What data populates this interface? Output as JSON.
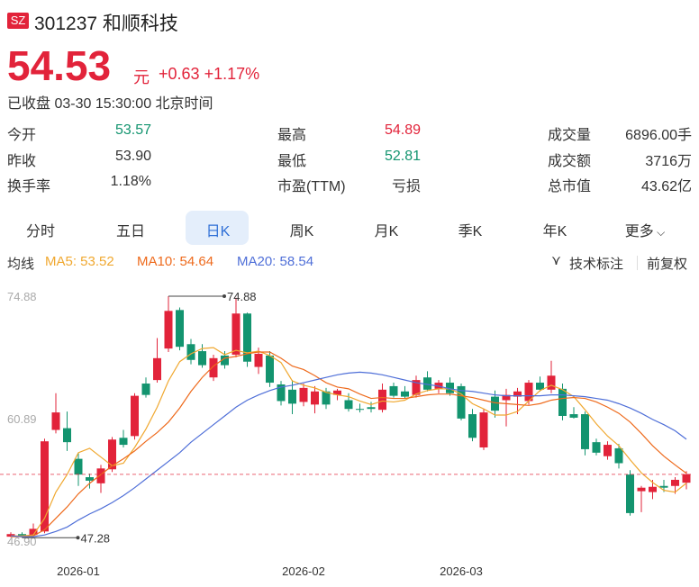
{
  "theme": {
    "up": "#e2233a",
    "down": "#13946f",
    "text": "#222222",
    "muted": "#999999"
  },
  "header": {
    "market": "SZ",
    "code": "301237",
    "name": "和顺科技",
    "price": "54.53",
    "unit": "元",
    "change": "+0.63",
    "change_pct": "+1.17%",
    "status": "已收盘 03-30 15:30:00 北京时间"
  },
  "stats": [
    [
      {
        "label": "今开",
        "value": "53.57",
        "tone": "down"
      },
      {
        "label": "最高",
        "value": "54.89",
        "tone": "up"
      },
      {
        "label": "成交量",
        "value": "6896.00手"
      }
    ],
    [
      {
        "label": "昨收",
        "value": "53.90"
      },
      {
        "label": "最低",
        "value": "52.81",
        "tone": "down"
      },
      {
        "label": "成交额",
        "value": "3716万"
      }
    ],
    [
      {
        "label": "换手率",
        "value": "1.18%"
      },
      {
        "label": "市盈(TTM)",
        "value": "亏损"
      },
      {
        "label": "总市值",
        "value": "43.62亿"
      }
    ]
  ],
  "tabs": {
    "items": [
      "分时",
      "五日",
      "日K",
      "周K",
      "月K",
      "季K",
      "年K",
      "更多"
    ],
    "selected": 2
  },
  "indicator_bar": {
    "label": "均线",
    "tools": [
      "技术标注",
      "前复权"
    ]
  },
  "chart_data": {
    "type": "candlestick",
    "categories": [
      null,
      null,
      null,
      null,
      null,
      null,
      "2026-01",
      null,
      null,
      null,
      null,
      null,
      null,
      null,
      null,
      null,
      null,
      null,
      null,
      null,
      null,
      null,
      null,
      null,
      null,
      null,
      "2026-02",
      null,
      null,
      null,
      null,
      null,
      null,
      null,
      null,
      null,
      null,
      null,
      null,
      null,
      "2026-03",
      null,
      null,
      null,
      null,
      null,
      null,
      null,
      null,
      null,
      null,
      null,
      null,
      null,
      null,
      null,
      null,
      null,
      null,
      null,
      null
    ],
    "open": [
      47.4,
      47.7,
      47.6,
      48.0,
      59.6,
      59.8,
      56.3,
      54.2,
      53.5,
      55.1,
      58.7,
      58.9,
      64.9,
      65.3,
      68.9,
      73.3,
      69.4,
      68.6,
      65.6,
      68.1,
      68.2,
      72.9,
      66.8,
      68.1,
      64.8,
      64.2,
      62.8,
      62.5,
      64.0,
      63.6,
      63.0,
      62.0,
      62.2,
      61.9,
      64.6,
      64.0,
      63.6,
      65.6,
      64.3,
      65.0,
      64.6,
      61.4,
      57.6,
      63.4,
      63.0,
      63.4,
      62.9,
      65.0,
      64.2,
      64.3,
      61.4,
      61.4,
      58.2,
      56.6,
      57.5,
      54.5,
      52.6,
      52.5,
      53.2,
      53.2,
      53.57
    ],
    "high": [
      47.9,
      47.9,
      48.9,
      58.6,
      63.8,
      61.7,
      57.0,
      54.6,
      55.6,
      58.8,
      59.6,
      63.8,
      65.6,
      70.1,
      74.88,
      73.6,
      70.0,
      69.4,
      68.2,
      68.6,
      74.7,
      73.0,
      69.0,
      68.6,
      65.2,
      65.3,
      64.9,
      64.6,
      64.4,
      64.3,
      63.8,
      62.6,
      62.8,
      64.9,
      65.0,
      64.6,
      65.8,
      66.3,
      65.3,
      65.6,
      64.9,
      62.0,
      62.0,
      64.1,
      64.3,
      64.4,
      65.3,
      65.7,
      67.5,
      64.9,
      62.2,
      61.7,
      58.6,
      58.3,
      58.0,
      55.0,
      53.2,
      53.9,
      53.9,
      54.2,
      54.89
    ],
    "low": [
      47.35,
      47.28,
      47.4,
      47.8,
      59.2,
      57.2,
      53.2,
      52.9,
      52.4,
      54.8,
      57.6,
      58.5,
      63.3,
      65.0,
      68.5,
      68.7,
      67.1,
      66.7,
      65.2,
      66.6,
      67.9,
      66.8,
      66.0,
      64.5,
      62.4,
      61.4,
      62.3,
      61.5,
      62.0,
      63.0,
      61.7,
      61.6,
      61.6,
      61.6,
      63.3,
      63.2,
      63.3,
      64.0,
      63.8,
      63.5,
      60.7,
      58.3,
      57.3,
      61.0,
      60.0,
      61.4,
      62.5,
      64.0,
      63.8,
      60.7,
      60.9,
      56.7,
      56.7,
      56.2,
      55.2,
      49.8,
      50.2,
      51.7,
      52.5,
      52.3,
      52.81
    ],
    "close": [
      47.7,
      47.4,
      48.3,
      58.3,
      61.6,
      58.2,
      54.5,
      53.8,
      55.2,
      58.5,
      57.9,
      63.5,
      63.6,
      67.8,
      73.2,
      69.1,
      67.6,
      67.0,
      67.8,
      67.0,
      72.9,
      67.4,
      68.3,
      65.0,
      62.9,
      62.6,
      64.4,
      64.0,
      62.5,
      64.1,
      62.0,
      61.9,
      62.0,
      64.2,
      63.5,
      63.4,
      65.3,
      64.2,
      65.0,
      63.8,
      60.9,
      58.7,
      61.6,
      61.8,
      63.6,
      64.0,
      65.0,
      64.2,
      65.8,
      61.2,
      61.0,
      57.4,
      57.0,
      57.9,
      55.8,
      50.1,
      53.0,
      53.1,
      53.0,
      53.9,
      54.53
    ],
    "series": [
      {
        "name": "MA5: 53.52",
        "color": "#f0a830",
        "values": [
          47.5,
          47.5,
          47.6,
          49.5,
          52.5,
          54.5,
          57,
          57.5,
          56.5,
          55.5,
          55.8,
          57.6,
          59.7,
          62.2,
          65.2,
          67.4,
          68.3,
          68.9,
          69,
          68.2,
          68.7,
          68.4,
          68.6,
          68.1,
          67.3,
          65.2,
          64.7,
          64.4,
          63.9,
          63.6,
          63.4,
          62.9,
          62.5,
          62.9,
          62.8,
          63.0,
          63.7,
          64.1,
          64.3,
          64.3,
          63.7,
          62.6,
          62.0,
          61.3,
          61.3,
          61.7,
          62.9,
          64.1,
          64.7,
          64.2,
          63.4,
          61.9,
          60.3,
          58.9,
          57.8,
          56.2,
          54.7,
          53.6,
          52.7,
          52.5,
          53.52
        ]
      },
      {
        "name": "MA10: 54.64",
        "color": "#ee6a1c",
        "values": [
          47.4,
          47.4,
          47.5,
          48.2,
          49.5,
          50.8,
          52.3,
          53.5,
          54.5,
          55.5,
          56.3,
          57.2,
          58.3,
          59.3,
          60.5,
          62.1,
          64.0,
          65.6,
          66.9,
          67.8,
          68.0,
          68.3,
          68.5,
          68.5,
          67.8,
          66.9,
          66.5,
          65.8,
          65.0,
          64.5,
          64.3,
          63.7,
          63.2,
          63.3,
          63.2,
          63.2,
          63.4,
          63.6,
          63.7,
          63.7,
          63.5,
          63.3,
          63.0,
          62.7,
          62.6,
          62.5,
          62.4,
          62.6,
          63.0,
          63.2,
          63.3,
          63.2,
          62.8,
          62.2,
          61.5,
          60.5,
          59.2,
          57.8,
          56.6,
          55.6,
          54.64
        ]
      },
      {
        "name": "MA20: 58.54",
        "color": "#4f6fd8",
        "values": [
          47.5,
          47.4,
          47.4,
          47.6,
          48,
          48.5,
          49.3,
          50,
          50.6,
          51.3,
          52.1,
          53,
          54,
          55,
          56,
          57,
          58.2,
          59.2,
          60.2,
          61.2,
          62.2,
          63,
          63.6,
          64.1,
          64.5,
          64.7,
          65,
          65.3,
          65.6,
          65.9,
          66.1,
          66.2,
          66.1,
          65.9,
          65.6,
          65.3,
          65,
          64.8,
          64.6,
          64.3,
          64.1,
          64,
          63.8,
          63.6,
          63.5,
          63.5,
          63.5,
          63.5,
          63.6,
          63.6,
          63.5,
          63.4,
          63.2,
          63,
          62.6,
          62.1,
          61.5,
          60.8,
          60.2,
          59.5,
          58.54
        ]
      }
    ],
    "annotations": [
      74.88,
      47.28
    ],
    "ylim": [
      46.9,
      74.88
    ],
    "yticks": [
      {
        "value": 46.9,
        "label": "46.90"
      },
      60.89,
      74.88
    ],
    "grid": false
  }
}
